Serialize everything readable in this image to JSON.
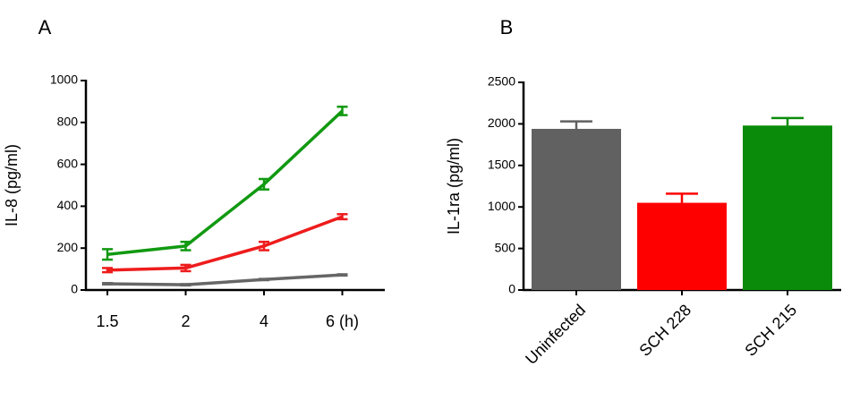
{
  "chart_data": [
    {
      "type": "line",
      "title": "A",
      "y_label": "IL-8 (pg/ml)",
      "categories": [
        "1.5",
        "2",
        "4",
        "6 (h)"
      ],
      "series": [
        {
          "color": "#119911",
          "values": [
            170,
            210,
            505,
            855
          ],
          "errors": [
            25,
            20,
            25,
            20
          ]
        },
        {
          "color": "#ee1c1c",
          "values": [
            95,
            105,
            210,
            350
          ],
          "errors": [
            10,
            15,
            20,
            12
          ]
        },
        {
          "color": "#666666",
          "values": [
            30,
            25,
            50,
            72
          ],
          "errors": [
            3,
            3,
            3,
            3
          ]
        }
      ],
      "ylim": [
        0,
        1000
      ],
      "yticks": [
        0,
        200,
        400,
        600,
        800,
        1000
      ]
    },
    {
      "type": "bar",
      "title": "B",
      "y_label": "IL-1ra (pg/ml)",
      "categories": [
        "Uninfected",
        "SCH 228",
        "SCH 215"
      ],
      "values": [
        1940,
        1050,
        1980
      ],
      "errors": [
        90,
        110,
        90
      ],
      "colors": [
        "#616161",
        "#ff0000",
        "#0a8c0a"
      ],
      "ylim": [
        0,
        2500
      ],
      "yticks": [
        0,
        500,
        1000,
        1500,
        2000,
        2500
      ]
    }
  ]
}
